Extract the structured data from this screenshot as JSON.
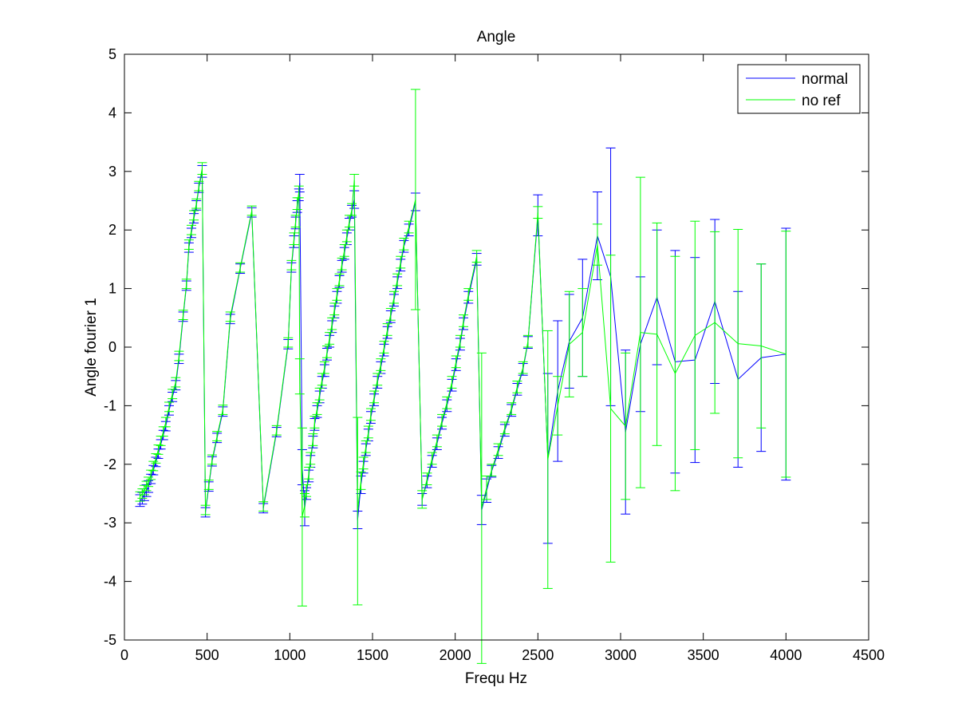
{
  "chart_data": {
    "type": "line",
    "title": "Angle",
    "xlabel": "Frequ Hz",
    "ylabel": "Angle fourier 1",
    "xlim": [
      0,
      4500
    ],
    "ylim": [
      -5,
      5
    ],
    "xticks": [
      0,
      500,
      1000,
      1500,
      2000,
      2500,
      3000,
      3500,
      4000,
      4500
    ],
    "yticks": [
      -5,
      -4,
      -3,
      -2,
      -1,
      0,
      1,
      2,
      3,
      4,
      5
    ],
    "grid": false,
    "legend": "top-right",
    "error_bars": true,
    "series": [
      {
        "name": "normal",
        "color": "#0000ff",
        "x": [
          94,
          108,
          120,
          133,
          145,
          160,
          175,
          190,
          205,
          220,
          235,
          250,
          270,
          290,
          310,
          330,
          355,
          375,
          390,
          405,
          420,
          435,
          450,
          470,
          490,
          510,
          530,
          560,
          595,
          640,
          700,
          770,
          840,
          920,
          990,
          1010,
          1025,
          1035,
          1045,
          1055,
          1060,
          1075,
          1090,
          1100,
          1115,
          1125,
          1140,
          1150,
          1165,
          1180,
          1195,
          1210,
          1225,
          1240,
          1255,
          1270,
          1285,
          1300,
          1315,
          1330,
          1345,
          1360,
          1375,
          1390,
          1410,
          1430,
          1445,
          1460,
          1475,
          1490,
          1510,
          1530,
          1550,
          1570,
          1590,
          1610,
          1630,
          1650,
          1670,
          1690,
          1720,
          1760,
          1800,
          1830,
          1860,
          1890,
          1920,
          1950,
          1980,
          2005,
          2030,
          2050,
          2080,
          2130,
          2160,
          2190,
          2220,
          2260,
          2300,
          2340,
          2375,
          2410,
          2440,
          2500,
          2560,
          2620,
          2690,
          2770,
          2860,
          2940,
          3030,
          3120,
          3220,
          3330,
          3450,
          3570,
          3710,
          3850,
          4000
        ],
        "y": [
          -2.62,
          -2.58,
          -2.52,
          -2.45,
          -2.38,
          -2.25,
          -2.1,
          -1.96,
          -1.82,
          -1.66,
          -1.5,
          -1.35,
          -1.08,
          -0.85,
          -0.65,
          -0.2,
          0.52,
          1.05,
          1.7,
          1.95,
          2.2,
          2.42,
          2.72,
          3.0,
          -2.82,
          -2.38,
          -1.95,
          -1.55,
          -1.1,
          0.48,
          1.34,
          2.3,
          -2.75,
          -1.45,
          0.05,
          1.36,
          1.8,
          2.12,
          2.4,
          2.6,
          2.8,
          -2.05,
          -2.75,
          -2.5,
          -2.2,
          -1.95,
          -1.62,
          -1.32,
          -1.1,
          -0.85,
          -0.6,
          -0.4,
          -0.12,
          0.1,
          0.35,
          0.6,
          0.85,
          1.12,
          1.38,
          1.6,
          1.85,
          2.1,
          2.32,
          2.52,
          -2.95,
          -2.35,
          -2.05,
          -1.75,
          -1.5,
          -1.2,
          -0.9,
          -0.6,
          -0.35,
          -0.05,
          0.25,
          0.52,
          0.8,
          1.1,
          1.4,
          1.72,
          2.0,
          2.48,
          -2.6,
          -2.3,
          -1.95,
          -1.65,
          -1.3,
          -1.0,
          -0.65,
          -0.3,
          0.05,
          0.4,
          0.85,
          1.5,
          -2.78,
          -2.45,
          -2.12,
          -1.8,
          -1.42,
          -1.08,
          -0.72,
          -0.38,
          0.08,
          2.25,
          -1.9,
          -0.75,
          0.1,
          0.5,
          1.9,
          1.2,
          -1.45,
          0.05,
          0.85,
          -0.25,
          -0.22,
          0.78,
          -0.55,
          -0.18,
          -0.12
        ],
        "err": [
          0.1,
          0.1,
          0.1,
          0.1,
          0.1,
          0.08,
          0.08,
          0.08,
          0.08,
          0.08,
          0.08,
          0.08,
          0.08,
          0.08,
          0.08,
          0.08,
          0.08,
          0.08,
          0.08,
          0.08,
          0.08,
          0.08,
          0.08,
          0.1,
          0.08,
          0.08,
          0.08,
          0.08,
          0.08,
          0.08,
          0.08,
          0.08,
          0.08,
          0.08,
          0.08,
          0.08,
          0.1,
          0.1,
          0.1,
          0.1,
          0.15,
          0.3,
          0.3,
          0.1,
          0.1,
          0.1,
          0.1,
          0.1,
          0.1,
          0.1,
          0.1,
          0.1,
          0.1,
          0.1,
          0.1,
          0.1,
          0.1,
          0.1,
          0.1,
          0.1,
          0.1,
          0.1,
          0.1,
          0.15,
          0.15,
          0.15,
          0.1,
          0.1,
          0.1,
          0.1,
          0.1,
          0.1,
          0.1,
          0.1,
          0.1,
          0.1,
          0.1,
          0.1,
          0.1,
          0.1,
          0.1,
          0.15,
          0.1,
          0.1,
          0.1,
          0.1,
          0.1,
          0.1,
          0.1,
          0.1,
          0.1,
          0.1,
          0.1,
          0.1,
          0.25,
          0.2,
          0.1,
          0.1,
          0.1,
          0.1,
          0.1,
          0.1,
          0.1,
          0.35,
          1.45,
          1.2,
          0.8,
          1.0,
          0.75,
          2.2,
          1.4,
          1.15,
          1.15,
          1.9,
          1.75,
          1.4,
          1.5,
          1.6,
          2.15
        ]
      },
      {
        "name": "no ref",
        "color": "#00ff00",
        "x": [
          94,
          108,
          120,
          133,
          145,
          160,
          175,
          190,
          205,
          220,
          235,
          250,
          270,
          290,
          310,
          330,
          355,
          375,
          390,
          405,
          420,
          435,
          450,
          470,
          490,
          510,
          530,
          560,
          595,
          640,
          700,
          770,
          840,
          920,
          990,
          1010,
          1025,
          1035,
          1045,
          1055,
          1060,
          1075,
          1090,
          1100,
          1115,
          1125,
          1140,
          1150,
          1165,
          1180,
          1195,
          1210,
          1225,
          1240,
          1255,
          1270,
          1285,
          1300,
          1315,
          1330,
          1345,
          1360,
          1375,
          1390,
          1410,
          1430,
          1445,
          1460,
          1475,
          1490,
          1510,
          1530,
          1550,
          1570,
          1590,
          1610,
          1630,
          1650,
          1670,
          1690,
          1720,
          1760,
          1800,
          1830,
          1860,
          1890,
          1920,
          1950,
          1980,
          2005,
          2030,
          2050,
          2080,
          2130,
          2160,
          2190,
          2220,
          2260,
          2300,
          2340,
          2375,
          2410,
          2440,
          2500,
          2560,
          2620,
          2690,
          2770,
          2860,
          2940,
          3030,
          3120,
          3220,
          3330,
          3450,
          3570,
          3710,
          3850,
          4000
        ],
        "y": [
          -2.55,
          -2.5,
          -2.44,
          -2.37,
          -2.3,
          -2.18,
          -2.03,
          -1.9,
          -1.75,
          -1.6,
          -1.44,
          -1.28,
          -1.02,
          -0.8,
          -0.6,
          -0.15,
          0.55,
          1.08,
          1.75,
          2.0,
          2.25,
          2.45,
          2.75,
          3.05,
          -2.78,
          -2.35,
          -1.92,
          -1.52,
          -1.07,
          0.52,
          1.36,
          2.33,
          -2.72,
          -1.42,
          0.08,
          1.4,
          1.85,
          2.15,
          2.45,
          2.65,
          -0.5,
          -2.9,
          -2.7,
          -2.45,
          -2.15,
          -1.9,
          -1.58,
          -1.28,
          -1.05,
          -0.8,
          -0.55,
          -0.35,
          -0.08,
          0.15,
          0.4,
          0.65,
          0.9,
          1.15,
          1.42,
          1.65,
          1.9,
          2.15,
          2.35,
          2.85,
          -2.8,
          -2.28,
          -1.98,
          -1.7,
          -1.45,
          -1.15,
          -0.85,
          -0.55,
          -0.3,
          0.0,
          0.3,
          0.56,
          0.85,
          1.15,
          1.45,
          1.76,
          2.05,
          2.52,
          -2.6,
          -2.25,
          -1.9,
          -1.6,
          -1.25,
          -0.95,
          -0.6,
          -0.25,
          0.1,
          0.45,
          0.9,
          1.55,
          -2.75,
          -2.4,
          -2.1,
          -1.75,
          -1.38,
          -1.05,
          -0.68,
          -0.35,
          0.1,
          2.3,
          -1.92,
          -1.0,
          0.05,
          0.25,
          1.75,
          -1.05,
          -1.35,
          0.25,
          0.22,
          -0.45,
          0.2,
          0.42,
          0.06,
          0.02,
          -0.12
        ],
        "err": [
          0.08,
          0.08,
          0.08,
          0.08,
          0.08,
          0.08,
          0.08,
          0.08,
          0.08,
          0.08,
          0.08,
          0.08,
          0.08,
          0.08,
          0.08,
          0.08,
          0.08,
          0.08,
          0.08,
          0.08,
          0.08,
          0.08,
          0.08,
          0.1,
          0.08,
          0.08,
          0.08,
          0.08,
          0.08,
          0.08,
          0.08,
          0.08,
          0.08,
          0.08,
          0.08,
          0.08,
          0.1,
          0.1,
          0.1,
          0.1,
          0.3,
          1.52,
          0.2,
          0.1,
          0.1,
          0.1,
          0.1,
          0.1,
          0.1,
          0.1,
          0.1,
          0.1,
          0.1,
          0.1,
          0.1,
          0.1,
          0.1,
          0.1,
          0.1,
          0.1,
          0.1,
          0.1,
          0.1,
          0.1,
          1.6,
          0.15,
          0.1,
          0.1,
          0.1,
          0.1,
          0.1,
          0.1,
          0.1,
          0.1,
          0.1,
          0.1,
          0.1,
          0.1,
          0.1,
          0.1,
          0.1,
          1.88,
          0.15,
          0.1,
          0.1,
          0.1,
          0.1,
          0.1,
          0.1,
          0.1,
          0.1,
          0.1,
          0.1,
          0.1,
          2.65,
          0.2,
          0.1,
          0.1,
          0.1,
          0.1,
          0.1,
          0.1,
          0.1,
          0.1,
          2.2,
          0.5,
          0.9,
          0.75,
          0.35,
          2.62,
          1.25,
          2.65,
          1.9,
          2.0,
          1.95,
          1.55,
          1.95,
          1.4,
          2.1
        ]
      }
    ]
  }
}
